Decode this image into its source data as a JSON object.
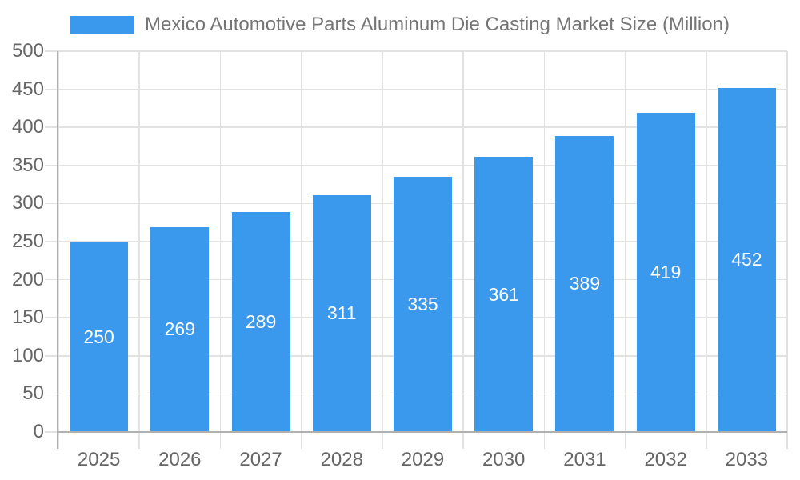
{
  "chart_data": {
    "type": "bar",
    "title": "Mexico Automotive Parts Aluminum Die Casting Market Size (Million)",
    "categories": [
      "2025",
      "2026",
      "2027",
      "2028",
      "2029",
      "2030",
      "2031",
      "2032",
      "2033"
    ],
    "values": [
      250,
      269,
      289,
      311,
      335,
      361,
      389,
      419,
      452
    ],
    "xlabel": "",
    "ylabel": "",
    "ylim": [
      0,
      500
    ],
    "ytick_step": 50,
    "yticks": [
      0,
      50,
      100,
      150,
      200,
      250,
      300,
      350,
      400,
      450,
      500
    ],
    "grid": true,
    "bar_labels_visible": true,
    "legend_position": "top-center",
    "colors": {
      "bar": "#3a99ec",
      "grid_line": "#e2e2e2",
      "axis_line": "#b0b0b0",
      "axis_text": "#666666",
      "legend_text": "#757575",
      "bar_label_text": "#ffffff",
      "background": "#ffffff"
    }
  },
  "legend": {
    "label": "Mexico Automotive Parts Aluminum Die Casting Market Size (Million)"
  }
}
